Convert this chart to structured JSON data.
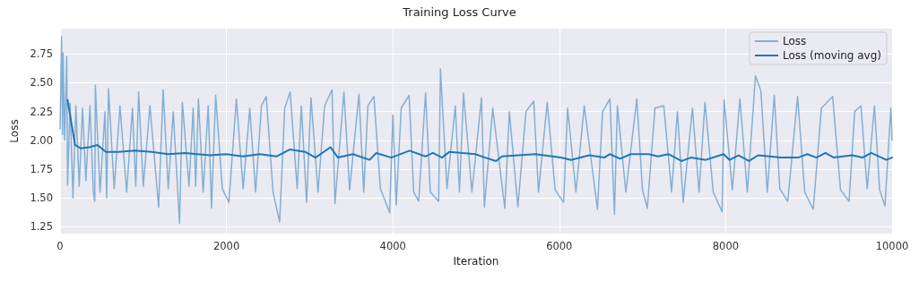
{
  "chart_data": {
    "type": "line",
    "title": "Training Loss Curve",
    "xlabel": "Iteration",
    "ylabel": "Loss",
    "xlim": [
      0,
      10000
    ],
    "xticks": [
      0,
      2000,
      4000,
      6000,
      8000,
      10000
    ],
    "ylim": [
      1.19,
      2.97
    ],
    "yticks": [
      1.25,
      {
        "value": 1.5,
        "label": "1.50"
      },
      1.75,
      {
        "value": 2.0,
        "label": "2.00"
      },
      2.25,
      {
        "value": 2.5,
        "label": "2.50"
      },
      2.75
    ],
    "grid": true,
    "legend": "top right",
    "marker": "none",
    "line_style": "solid",
    "series": [
      {
        "name": "Loss",
        "color": "#84afd3",
        "x": [
          0,
          18,
          30,
          36,
          55,
          80,
          90,
          120,
          155,
          190,
          230,
          270,
          310,
          360,
          400,
          417,
          424,
          480,
          540,
          560,
          582,
          650,
          720,
          800,
          870,
          910,
          944,
          1000,
          1080,
          1185,
          1239,
          1300,
          1360,
          1436,
          1470,
          1550,
          1600,
          1630,
          1663,
          1720,
          1780,
          1820,
          1870,
          1950,
          2029,
          2119,
          2200,
          2280,
          2350,
          2420,
          2478,
          2560,
          2639,
          2700,
          2765,
          2850,
          2900,
          2963,
          3016,
          3100,
          3180,
          3268,
          3304,
          3412,
          3480,
          3592,
          3650,
          3700,
          3772,
          3850,
          3961,
          4000,
          4040,
          4100,
          4195,
          4250,
          4310,
          4393,
          4450,
          4550,
          4572,
          4650,
          4750,
          4800,
          4849,
          4950,
          5065,
          5100,
          5200,
          5345,
          5400,
          5502,
          5600,
          5693,
          5750,
          5855,
          5950,
          6052,
          6100,
          6200,
          6300,
          6459,
          6520,
          6609,
          6663,
          6698,
          6800,
          6932,
          7000,
          7058,
          7150,
          7256,
          7350,
          7420,
          7489,
          7600,
          7680,
          7751,
          7850,
          7956,
          7981,
          8080,
          8171,
          8260,
          8358,
          8423,
          8500,
          8584,
          8650,
          8746,
          8864,
          8950,
          9052,
          9150,
          9285,
          9380,
          9483,
          9550,
          9626,
          9700,
          9788,
          9850,
          9914,
          9985,
          10000
        ],
        "values": [
          2.1,
          2.9,
          2.05,
          2.76,
          2.0,
          2.73,
          1.61,
          2.32,
          1.5,
          2.3,
          1.6,
          2.28,
          1.65,
          2.3,
          1.55,
          1.47,
          2.48,
          1.55,
          2.25,
          1.5,
          2.45,
          1.58,
          2.3,
          1.55,
          2.28,
          1.6,
          2.42,
          1.6,
          2.3,
          1.42,
          2.44,
          1.58,
          2.25,
          1.28,
          2.33,
          1.6,
          2.28,
          1.6,
          2.36,
          1.55,
          2.3,
          1.41,
          2.39,
          1.58,
          1.46,
          2.36,
          1.58,
          2.28,
          1.55,
          2.3,
          2.38,
          1.55,
          1.29,
          2.28,
          2.42,
          1.58,
          2.3,
          1.46,
          2.37,
          1.55,
          2.3,
          2.44,
          1.45,
          2.42,
          1.57,
          2.4,
          1.55,
          2.3,
          2.38,
          1.58,
          1.37,
          2.22,
          1.44,
          2.28,
          2.39,
          1.55,
          1.47,
          2.41,
          1.55,
          1.47,
          2.62,
          1.58,
          2.3,
          1.55,
          2.41,
          1.55,
          2.37,
          1.42,
          2.28,
          1.41,
          2.25,
          1.42,
          2.25,
          2.34,
          1.55,
          2.33,
          1.57,
          1.46,
          2.28,
          1.55,
          2.3,
          1.4,
          2.25,
          2.36,
          1.36,
          2.3,
          1.55,
          2.36,
          1.57,
          1.41,
          2.28,
          2.3,
          1.55,
          2.25,
          1.46,
          2.28,
          1.55,
          2.33,
          1.55,
          1.38,
          2.35,
          1.57,
          2.36,
          1.55,
          2.56,
          2.43,
          1.55,
          2.39,
          1.58,
          1.47,
          2.38,
          1.55,
          1.4,
          2.28,
          2.38,
          1.57,
          1.47,
          2.25,
          2.3,
          1.58,
          2.3,
          1.57,
          1.43,
          2.28,
          2.0
        ]
      },
      {
        "name": "Loss (moving avg)",
        "color": "#1f77b4",
        "x": [
          90,
          180,
          250,
          350,
          450,
          550,
          700,
          900,
          1100,
          1300,
          1500,
          1800,
          2000,
          2200,
          2400,
          2600,
          2760,
          2945,
          3070,
          3250,
          3340,
          3520,
          3720,
          3800,
          3980,
          4200,
          4390,
          4480,
          4590,
          4680,
          4990,
          5110,
          5240,
          5310,
          5710,
          6020,
          6140,
          6360,
          6540,
          6610,
          6730,
          6860,
          7075,
          7185,
          7310,
          7470,
          7580,
          7760,
          7975,
          8047,
          8155,
          8280,
          8390,
          8660,
          8870,
          8980,
          9090,
          9200,
          9300,
          9520,
          9645,
          9750,
          9930,
          10000
        ],
        "values": [
          2.35,
          1.96,
          1.93,
          1.94,
          1.96,
          1.9,
          1.9,
          1.91,
          1.9,
          1.88,
          1.89,
          1.87,
          1.88,
          1.86,
          1.88,
          1.86,
          1.92,
          1.9,
          1.85,
          1.94,
          1.85,
          1.88,
          1.83,
          1.89,
          1.85,
          1.91,
          1.86,
          1.89,
          1.85,
          1.9,
          1.88,
          1.85,
          1.82,
          1.86,
          1.88,
          1.85,
          1.83,
          1.87,
          1.85,
          1.88,
          1.84,
          1.88,
          1.88,
          1.86,
          1.88,
          1.82,
          1.85,
          1.83,
          1.88,
          1.83,
          1.87,
          1.82,
          1.87,
          1.85,
          1.85,
          1.88,
          1.85,
          1.89,
          1.85,
          1.87,
          1.85,
          1.89,
          1.83,
          1.85
        ]
      }
    ]
  }
}
